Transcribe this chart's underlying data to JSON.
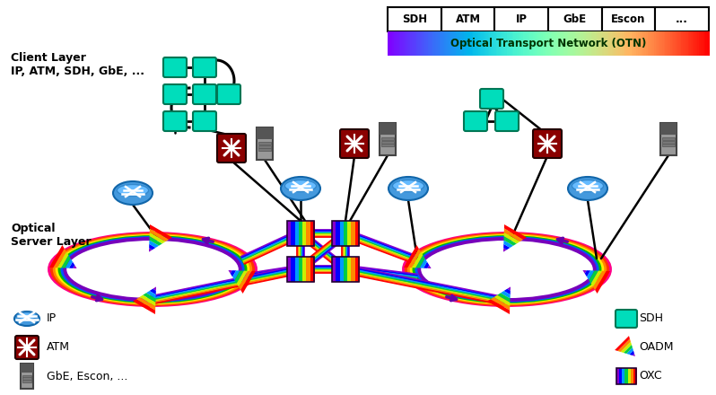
{
  "bg_color": "#ffffff",
  "otn_labels": [
    "SDH",
    "ATM",
    "IP",
    "GbE",
    "Escon",
    "..."
  ],
  "otn_text": "Optical Transport Network (OTN)",
  "client_layer_text": "Client Layer\nIP, ATM, SDH, GbE, ...",
  "optical_server_text": "Optical\nServer Layer",
  "sdh_color": "#00DDBB",
  "sdh_edge": "#007755",
  "atm_color": "#8B0000",
  "ip_color": "#3399DD",
  "ip_edge": "#1166AA",
  "server_dark": "#444444",
  "server_mid": "#888888",
  "server_light": "#AAAAAA",
  "line_color": "#111111",
  "ring_colors_outer_to_inner": [
    "#FF0088",
    "#FF4400",
    "#FF9900",
    "#FFEE00",
    "#00CC00",
    "#0000FF",
    "#8800CC"
  ],
  "rainbow_stripe": [
    "#8800CC",
    "#0000FF",
    "#0099FF",
    "#00CC44",
    "#CCEE00",
    "#FF8800",
    "#FF0000"
  ],
  "oadm_colors": [
    "#FF0000",
    "#FF8800",
    "#FFEE00",
    "#00CC00",
    "#0000FF",
    "#8800CC"
  ],
  "oxc_colors": [
    "#FF0000",
    "#FF8800",
    "#FFEE00",
    "#00CC00",
    "#0000FF",
    "#8800CC"
  ]
}
